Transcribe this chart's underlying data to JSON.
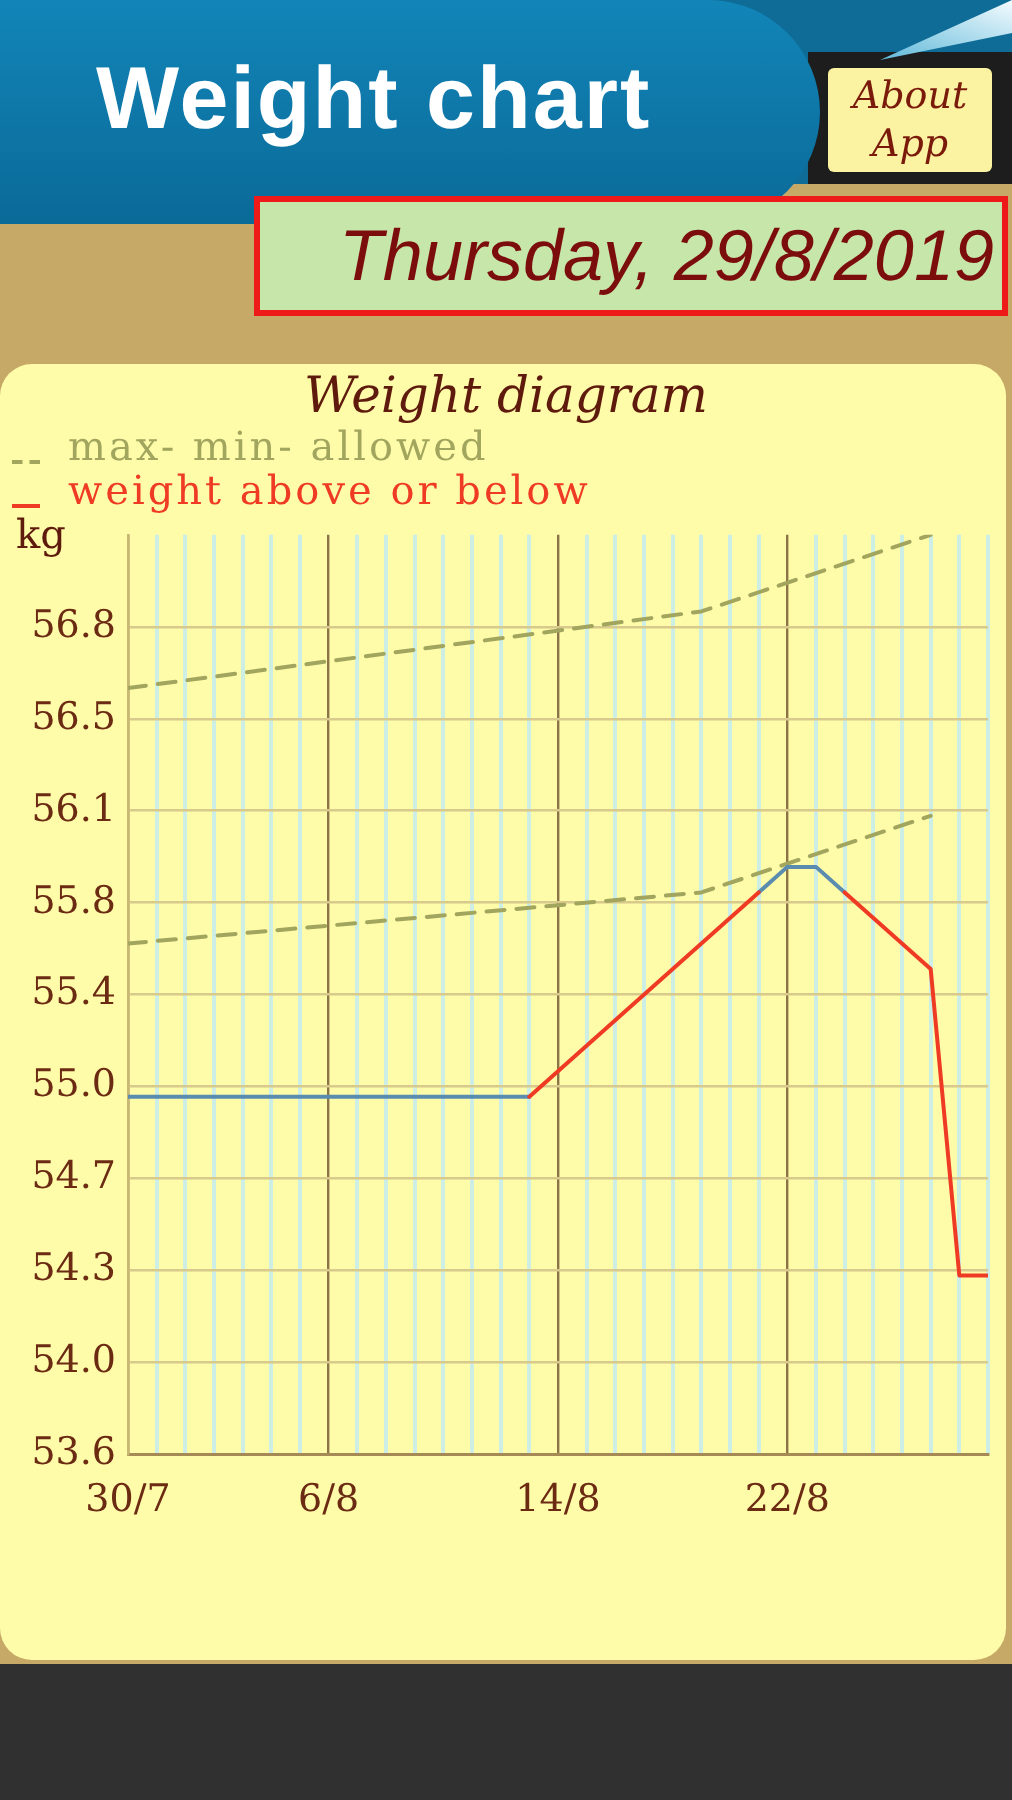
{
  "chart_data": {
    "type": "line",
    "title": "Weight diagram",
    "ylabel": "kg",
    "annotations": [
      "Weight chart",
      "Thursday, 29/8/2019",
      "About App"
    ],
    "xlim": [
      "2019-07-30",
      "2019-08-29"
    ],
    "xticks": [
      {
        "value": "2019-07-30",
        "label": "30/7"
      },
      {
        "value": "2019-07-31",
        "label": null
      },
      {
        "value": "2019-08-01",
        "label": null
      },
      {
        "value": "2019-08-02",
        "label": null
      },
      {
        "value": "2019-08-03",
        "label": null
      },
      {
        "value": "2019-08-04",
        "label": null
      },
      {
        "value": "2019-08-05",
        "label": null
      },
      {
        "value": "2019-08-06",
        "label": "6/8"
      },
      {
        "value": "2019-08-07",
        "label": null
      },
      {
        "value": "2019-08-08",
        "label": null
      },
      {
        "value": "2019-08-09",
        "label": null
      },
      {
        "value": "2019-08-10",
        "label": null
      },
      {
        "value": "2019-08-11",
        "label": null
      },
      {
        "value": "2019-08-12",
        "label": null
      },
      {
        "value": "2019-08-13",
        "label": null
      },
      {
        "value": "2019-08-14",
        "label": "14/8"
      },
      {
        "value": "2019-08-15",
        "label": null
      },
      {
        "value": "2019-08-16",
        "label": null
      },
      {
        "value": "2019-08-17",
        "label": null
      },
      {
        "value": "2019-08-18",
        "label": null
      },
      {
        "value": "2019-08-19",
        "label": null
      },
      {
        "value": "2019-08-20",
        "label": null
      },
      {
        "value": "2019-08-21",
        "label": null
      },
      {
        "value": "2019-08-22",
        "label": "22/8"
      },
      {
        "value": "2019-08-23",
        "label": null
      },
      {
        "value": "2019-08-24",
        "label": null
      },
      {
        "value": "2019-08-25",
        "label": null
      },
      {
        "value": "2019-08-26",
        "label": null
      },
      {
        "value": "2019-08-27",
        "label": null
      },
      {
        "value": "2019-08-28",
        "label": null
      },
      {
        "value": "2019-08-29",
        "label": null
      }
    ],
    "ylim": [
      53.6,
      57.2
    ],
    "yticks": [
      53.6,
      {
        "value": 53.96,
        "label": "54.0"
      },
      {
        "value": 54.32,
        "label": "54.3"
      },
      {
        "value": 54.68,
        "label": "54.7"
      },
      {
        "value": 55.04,
        "label": "55.0"
      },
      55.4,
      {
        "value": 55.76,
        "label": "55.8"
      },
      {
        "value": 56.12,
        "label": "56.1"
      },
      {
        "value": 56.48,
        "label": "56.5"
      },
      {
        "value": 56.84,
        "label": "56.8"
      }
    ],
    "grid": true,
    "legend": "top left",
    "marker": "none",
    "series": [
      {
        "name": "max- min- allowed",
        "color": "#a2a55e",
        "line_style": "dashed",
        "x": [
          "2019-07-30",
          "2019-08-19",
          "2019-08-27"
        ],
        "values": [
          56.6,
          56.9,
          57.2
        ]
      },
      {
        "color": "#a2a55e",
        "line_style": "dashed",
        "x": [
          "2019-07-30",
          "2019-08-19",
          "2019-08-27"
        ],
        "values": [
          55.6,
          55.8,
          56.1
        ]
      },
      {
        "color": "#5a8cb0",
        "x": [
          "2019-07-30",
          "2019-08-13",
          "2019-08-17",
          "2019-08-21",
          "2019-08-22",
          "2019-08-23",
          "2019-08-24"
        ],
        "values": [
          55.0,
          55.0,
          null,
          55.8,
          55.9,
          55.9,
          55.8
        ]
      },
      {
        "name": "weight above or below",
        "color": "#ef3b24",
        "x": [
          "2019-08-13",
          "2019-08-21",
          "2019-08-22",
          "2019-08-24",
          "2019-08-27",
          "2019-08-28",
          "2019-08-29"
        ],
        "values": [
          55.0,
          55.8,
          null,
          55.8,
          55.5,
          54.3,
          54.3
        ]
      }
    ]
  }
}
